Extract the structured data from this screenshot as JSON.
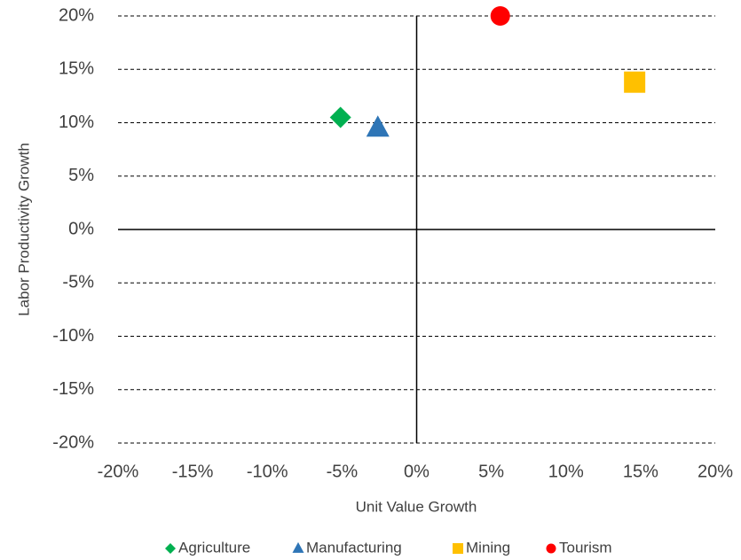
{
  "chart_data": {
    "type": "scatter",
    "xlabel": "Unit Value Growth",
    "ylabel": "Labor Productivity Growth",
    "series": [
      {
        "name": "Agriculture",
        "color": "#00b050",
        "marker": "diamond",
        "x": [
          -5.1
        ],
        "values": [
          10.5
        ]
      },
      {
        "name": "Manufacturing",
        "color": "#2e75b6",
        "marker": "triangle",
        "x": [
          -2.6
        ],
        "values": [
          9.5
        ]
      },
      {
        "name": "Mining",
        "color": "#ffc000",
        "marker": "square",
        "x": [
          14.6
        ],
        "values": [
          13.8
        ]
      },
      {
        "name": "Tourism",
        "color": "#ff0000",
        "marker": "circle",
        "x": [
          5.6
        ],
        "values": [
          20
        ]
      }
    ],
    "xlim": [
      -20,
      20
    ],
    "ylim": [
      -20,
      20
    ],
    "xticks": [
      {
        "value": -20,
        "label": "-20%"
      },
      {
        "value": -15,
        "label": "-15%"
      },
      {
        "value": -10,
        "label": "-10%"
      },
      {
        "value": -5,
        "label": "-5%"
      },
      {
        "value": 0,
        "label": "0%"
      },
      {
        "value": 5,
        "label": "5%"
      },
      {
        "value": 10,
        "label": "10%"
      },
      {
        "value": 15,
        "label": "15%"
      },
      {
        "value": 20,
        "label": "20%"
      }
    ],
    "yticks": [
      {
        "value": -20,
        "label": "-20%"
      },
      {
        "value": -15,
        "label": "-15%"
      },
      {
        "value": -10,
        "label": "-10%"
      },
      {
        "value": -5,
        "label": "-5%"
      },
      {
        "value": 0,
        "label": "0%"
      },
      {
        "value": 5,
        "label": "5%"
      },
      {
        "value": 10,
        "label": "10%"
      },
      {
        "value": 15,
        "label": "15%"
      },
      {
        "value": 20,
        "label": "20%"
      }
    ],
    "grid": true,
    "legend": "bottom"
  }
}
